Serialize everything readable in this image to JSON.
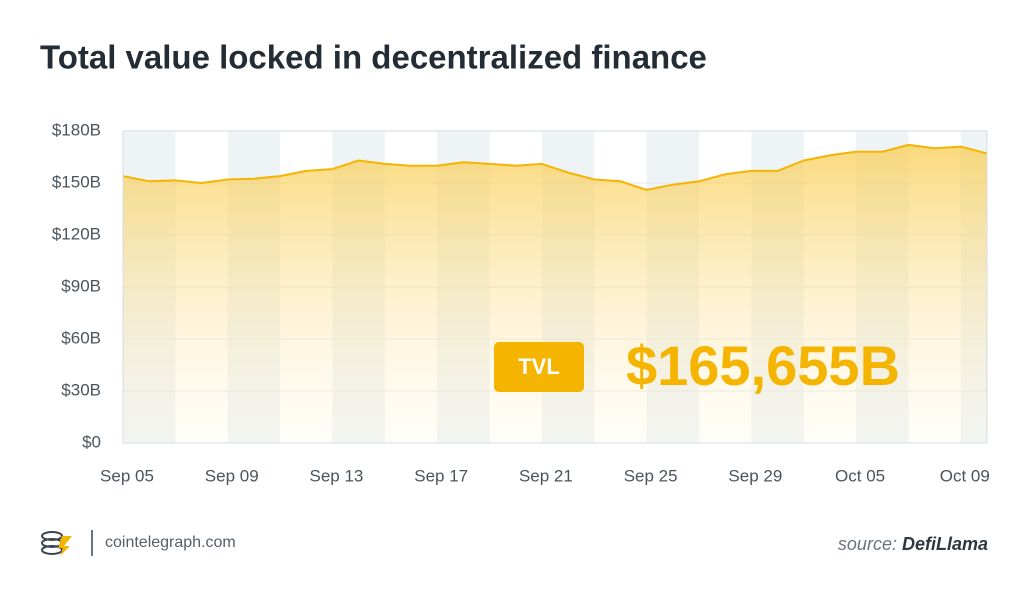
{
  "chart_data": {
    "type": "area-line",
    "title": "Total value locked in decentralized finance",
    "badge": "TVL",
    "annotation": "$165,655B",
    "categories": [
      "Sep 05",
      null,
      null,
      null,
      "Sep 09",
      null,
      null,
      null,
      "Sep 13",
      null,
      null,
      null,
      "Sep 17",
      null,
      null,
      null,
      "Sep 21",
      null,
      null,
      null,
      "Sep 25",
      null,
      null,
      null,
      "Sep 29",
      null,
      null,
      null,
      "Oct 05",
      null,
      null,
      null,
      "Oct 09",
      null
    ],
    "values": [
      154,
      151,
      151.5,
      150,
      152,
      152.5,
      154,
      157,
      158,
      163,
      161,
      160,
      160,
      162,
      161,
      160,
      161,
      156,
      152,
      151,
      146,
      149,
      151,
      155,
      157,
      157,
      163,
      166,
      168,
      168,
      172,
      170,
      171,
      167
    ],
    "color": "#f5b400",
    "ylim": [
      0,
      180
    ],
    "yticks": [
      {
        "value": 0,
        "label": "$0"
      },
      {
        "value": 30,
        "label": "$30B"
      },
      {
        "value": 60,
        "label": "$60B"
      },
      {
        "value": 90,
        "label": "$90B"
      },
      {
        "value": 120,
        "label": "$120B"
      },
      {
        "value": 150,
        "label": "$150B"
      },
      {
        "value": 180,
        "label": "$180B"
      }
    ],
    "grid": true
  },
  "footer": {
    "brand": "cointelegraph.com",
    "source_prefix": "source:",
    "source": "DefiLlama"
  }
}
